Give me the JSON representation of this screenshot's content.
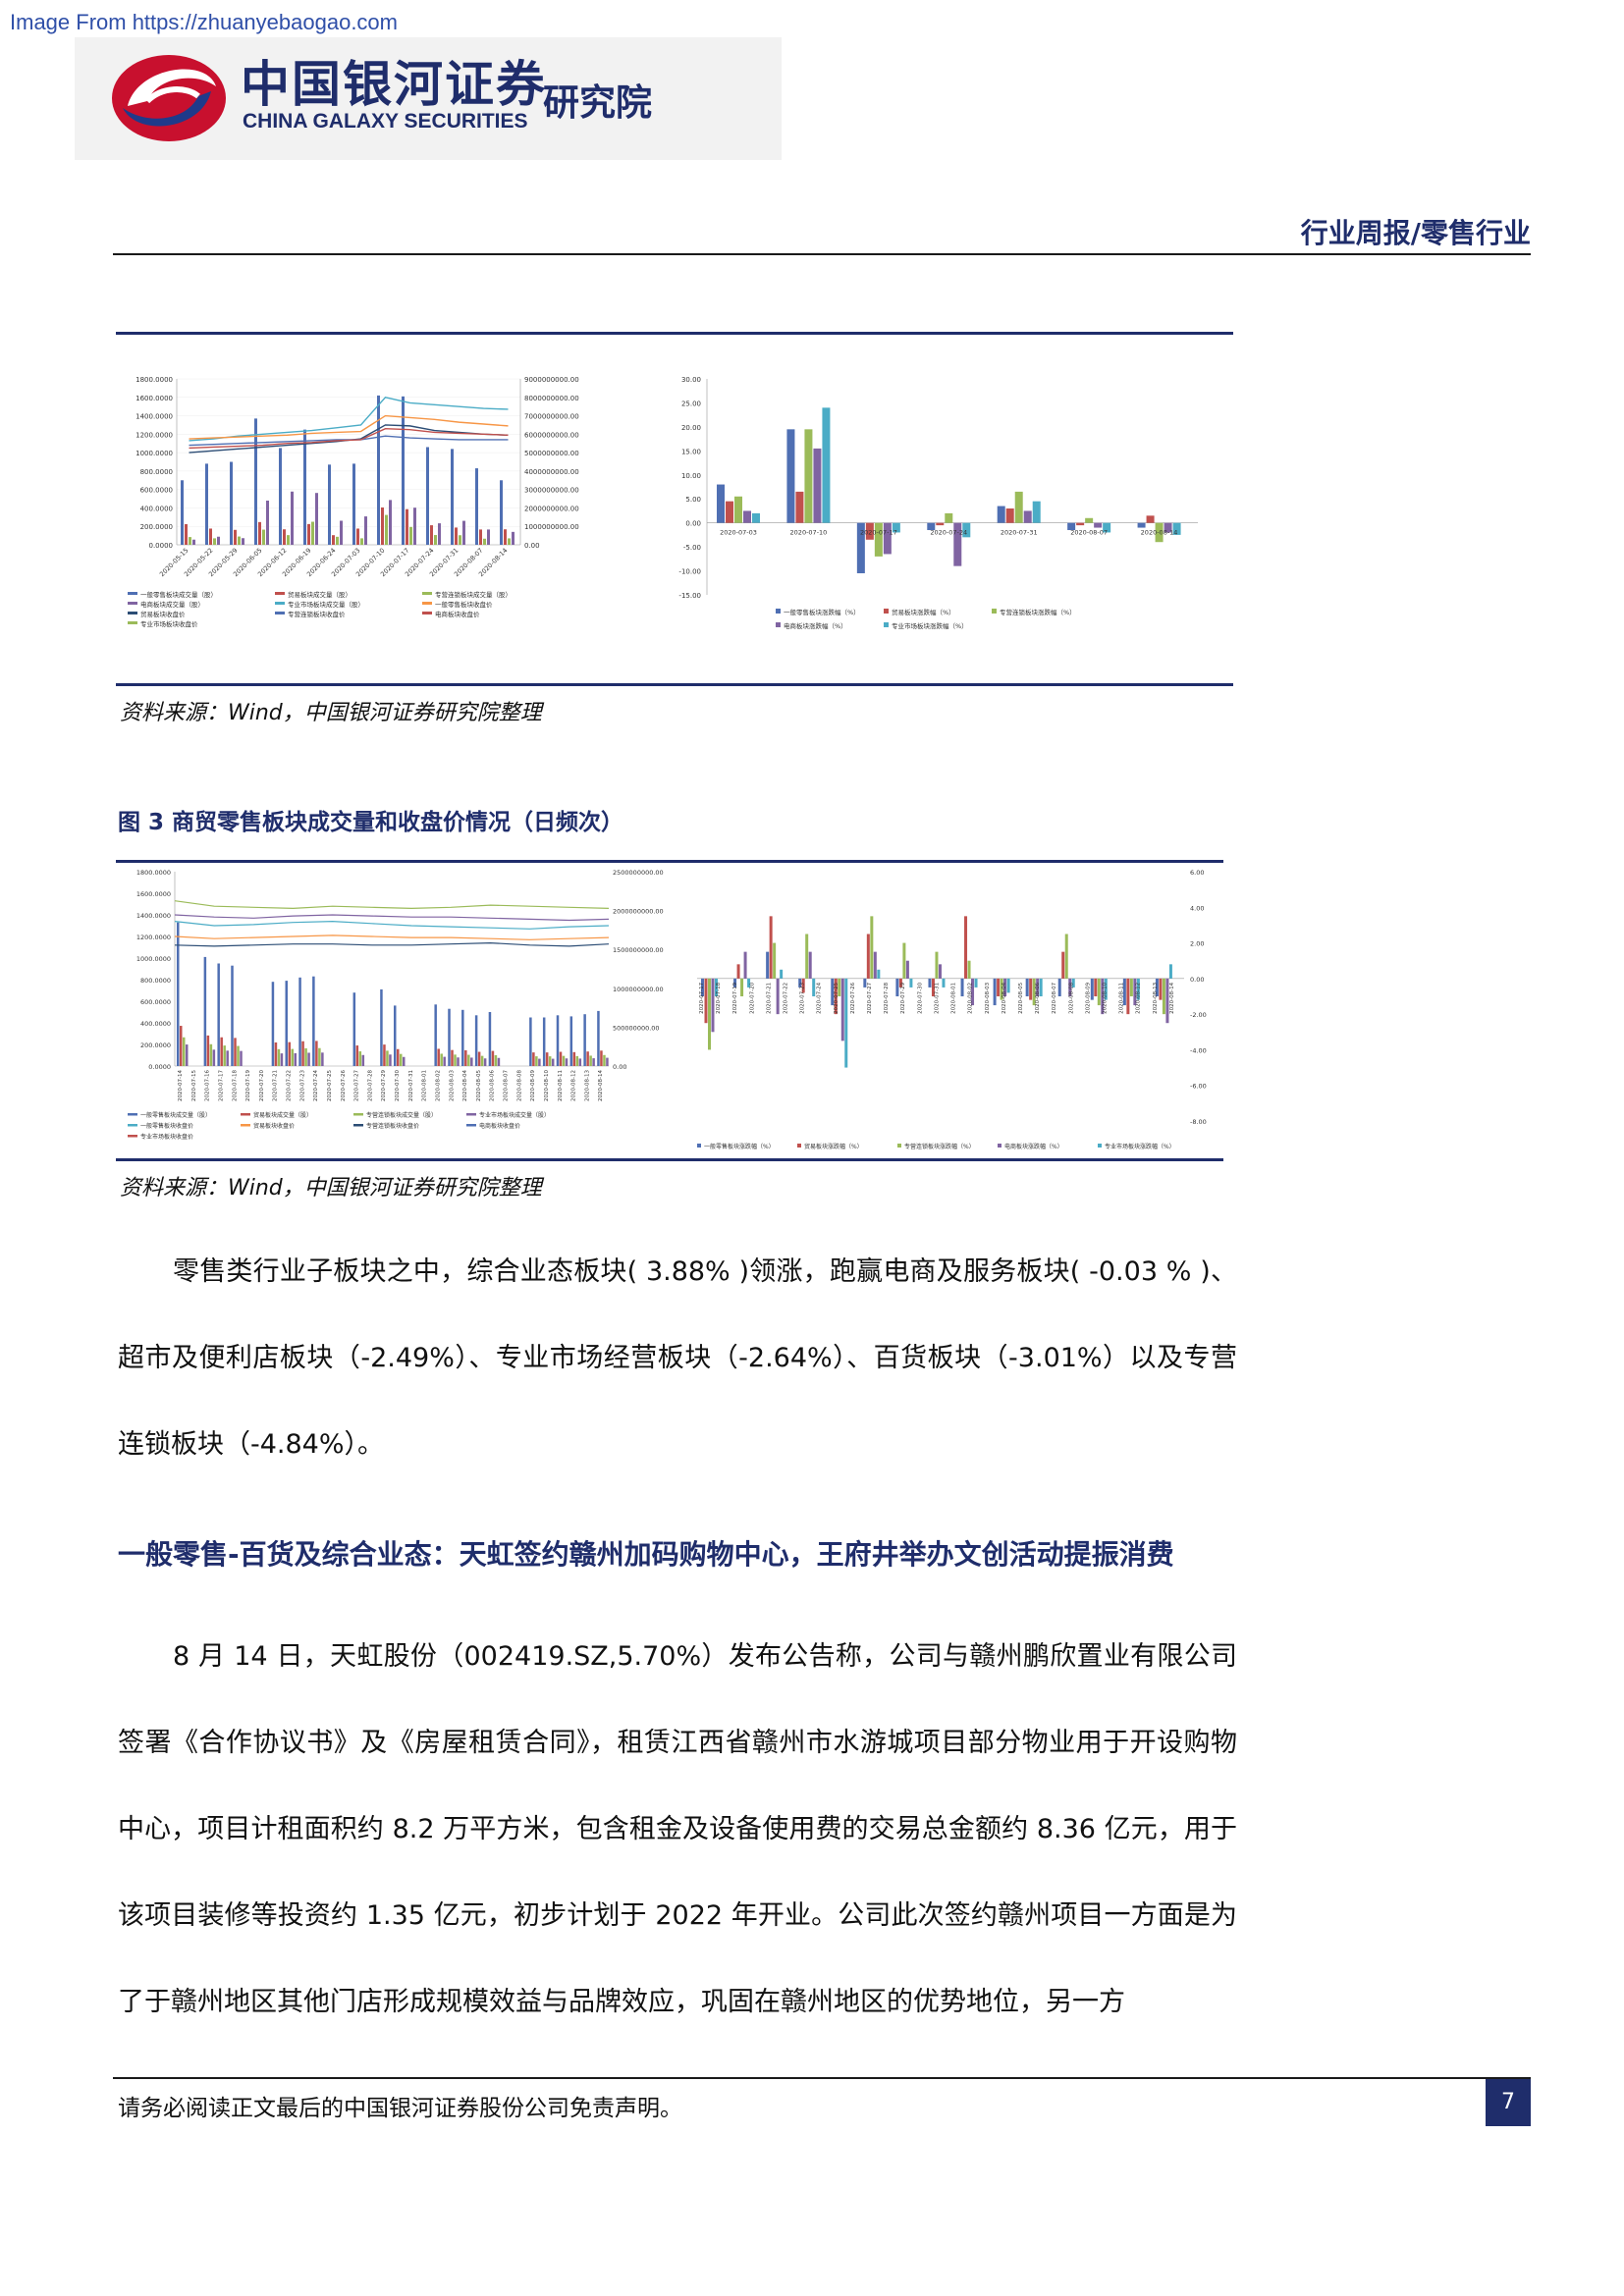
{
  "watermark": "Image From https://zhuanyebaogao.com",
  "header": {
    "company_cn": "中国银河证券",
    "company_en": "CHINA GALAXY SECURITIES",
    "institute": "研究院",
    "section_tag": "行业周报/零售行业"
  },
  "figure2": {
    "caption": "资料来源：Wind，中国银河证券研究院整理",
    "left_chart": {
      "type": "bar+line",
      "left_ticks": [
        "1800.0000",
        "1600.0000",
        "1400.0000",
        "1200.0000",
        "1000.0000",
        "800.0000",
        "600.0000",
        "400.0000",
        "200.0000",
        "0.0000"
      ],
      "right_ticks": [
        "9000000000.00",
        "8000000000.00",
        "7000000000.00",
        "6000000000.00",
        "5000000000.00",
        "4000000000.00",
        "3000000000.00",
        "2000000000.00",
        "1000000000.00",
        "0.00"
      ],
      "x_labels": [
        "2020-05-15",
        "2020-05-22",
        "2020-05-29",
        "2020-06-05",
        "2020-06-12",
        "2020-06-19",
        "2020-06-24",
        "2020-07-03",
        "2020-07-10",
        "2020-07-17",
        "2020-07-24",
        "2020-07-31",
        "2020-08-07",
        "2020-08-14"
      ],
      "legend": [
        "一般零售板块成交量（股）",
        "贸易板块成交量（股）",
        "专营连锁板块成交量（股）",
        "电商板块成交量（股）",
        "专业市场板块成交量（股）",
        "一般零售板块收盘价",
        "贸易板块收盘价",
        "专营连锁板块收盘价",
        "电商板块收盘价",
        "专业市场板块收盘价"
      ],
      "bars_main": [
        700,
        880,
        900,
        1370,
        1050,
        1250,
        870,
        880,
        1620,
        1610,
        1060,
        1040,
        830,
        700
      ]
    },
    "right_chart": {
      "type": "bar",
      "y_ticks": [
        "30.00",
        "25.00",
        "20.00",
        "15.00",
        "10.00",
        "5.00",
        "0.00",
        "-5.00",
        "-10.00",
        "-15.00"
      ],
      "x_labels": [
        "2020-07-03",
        "2020-07-10",
        "2020-07-17",
        "2020-07-24",
        "2020-07-31",
        "2020-08-07",
        "2020-08-14"
      ],
      "legend": [
        "一般零售板块涨跌幅（%）",
        "贸易板块涨跌幅（%）",
        "专营连锁板块涨跌幅（%）",
        "电商板块涨跌幅（%）",
        "专业市场板块涨跌幅（%）"
      ],
      "series": [
        {
          "name": "一般零售板块涨跌幅（%）",
          "values": [
            8.0,
            19.5,
            -10.5,
            -1.5,
            3.5,
            -1.5,
            -1.0
          ]
        },
        {
          "name": "贸易板块涨跌幅（%）",
          "values": [
            4.5,
            6.5,
            -3.5,
            -0.5,
            3.0,
            -0.5,
            1.5
          ]
        },
        {
          "name": "专营连锁板块涨跌幅（%）",
          "values": [
            5.5,
            19.5,
            -7.0,
            2.0,
            6.5,
            1.0,
            -4.0
          ]
        },
        {
          "name": "电商板块涨跌幅（%）",
          "values": [
            2.5,
            15.5,
            -6.5,
            -9.0,
            2.5,
            -1.0,
            -2.0
          ]
        },
        {
          "name": "专业市场板块涨跌幅（%）",
          "values": [
            2.0,
            24.0,
            -2.0,
            -3.0,
            4.5,
            -2.0,
            -2.5
          ]
        }
      ]
    }
  },
  "figure3": {
    "title": "图 3 商贸零售板块成交量和收盘价情况（日频次）",
    "caption": "资料来源：Wind，中国银河证券研究院整理",
    "left_chart": {
      "left_ticks": [
        "1800.0000",
        "1600.0000",
        "1400.0000",
        "1200.0000",
        "1000.0000",
        "800.0000",
        "600.0000",
        "400.0000",
        "200.0000",
        "0.0000"
      ],
      "right_ticks": [
        "2500000000.00",
        "2000000000.00",
        "1500000000.00",
        "1000000000.00",
        "500000000.00",
        "0.00"
      ],
      "x_labels": [
        "2020-07-14",
        "2020-07-15",
        "2020-07-16",
        "2020-07-17",
        "2020-07-18",
        "2020-07-19",
        "2020-07-20",
        "2020-07-21",
        "2020-07-22",
        "2020-07-23",
        "2020-07-24",
        "2020-07-25",
        "2020-07-26",
        "2020-07-27",
        "2020-07-28",
        "2020-07-29",
        "2020-07-30",
        "2020-07-31",
        "2020-08-01",
        "2020-08-02",
        "2020-08-03",
        "2020-08-04",
        "2020-08-05",
        "2020-08-06",
        "2020-08-07",
        "2020-08-08",
        "2020-08-09",
        "2020-08-10",
        "2020-08-11",
        "2020-08-12",
        "2020-08-13",
        "2020-08-14"
      ],
      "legend": [
        "一般零售板块成交量（股）",
        "贸易板块成交量（股）",
        "专营连锁板块成交量（股）",
        "专业市场板块成交量（股）",
        "一般零售板块收盘价",
        "贸易板块收盘价",
        "专营连锁板块收盘价",
        "电商板块收盘价",
        "专业市场板块收盘价"
      ]
    },
    "right_chart": {
      "y_ticks": [
        "6.00",
        "4.00",
        "2.00",
        "0.00",
        "-2.00",
        "-4.00",
        "-6.00",
        "-8.00"
      ],
      "x_labels": [
        "2020-07-17",
        "2020-07-18",
        "2020-07-19",
        "2020-07-20",
        "2020-07-21",
        "2020-07-22",
        "2020-07-23",
        "2020-07-24",
        "2020-07-25",
        "2020-07-26",
        "2020-07-27",
        "2020-07-28",
        "2020-07-29",
        "2020-07-30",
        "2020-07-31",
        "2020-08-01",
        "2020-08-02",
        "2020-08-03",
        "2020-08-04",
        "2020-08-05",
        "2020-08-06",
        "2020-08-07",
        "2020-08-08",
        "2020-08-09",
        "2020-08-10",
        "2020-08-11",
        "2020-08-12",
        "2020-08-13",
        "2020-08-14"
      ],
      "legend": [
        "一般零售板块涨跌幅（%）",
        "贸易板块涨跌幅（%）",
        "专营连锁板块涨跌幅（%）",
        "电商板块涨跌幅（%）",
        "专业市场板块涨跌幅（%）"
      ]
    }
  },
  "body": {
    "para1": "零售类行业子板块之中，综合业态板块( 3.88% )领涨，跑赢电商及服务板块( -0.03 % )、超市及便利店板块（-2.49%）、专业市场经营板块（-2.64%）、百货板块（-3.01%）以及专营连锁板块（-4.84%）。",
    "subhead": "一般零售-百货及综合业态：天虹签约赣州加码购物中心，王府井举办文创活动提振消费",
    "para2": "8 月 14 日，天虹股份（002419.SZ,5.70%）发布公告称，公司与赣州鹏欣置业有限公司签署《合作协议书》及《房屋租赁合同》，租赁江西省赣州市水游城项目部分物业用于开设购物中心，项目计租面积约 8.2 万平方米，包含租金及设备使用费的交易总金额约 8.36 亿元，用于该项目装修等投资约 1.35 亿元，初步计划于 2022 年开业。公司此次签约赣州项目一方面是为了于赣州地区其他门店形成规模效益与品牌效应，巩固在赣州地区的优势地位，另一方"
  },
  "footer": {
    "disclaimer": "请务必阅读正文最后的中国银河证券股份公司免责声明。",
    "page_number": "7"
  }
}
